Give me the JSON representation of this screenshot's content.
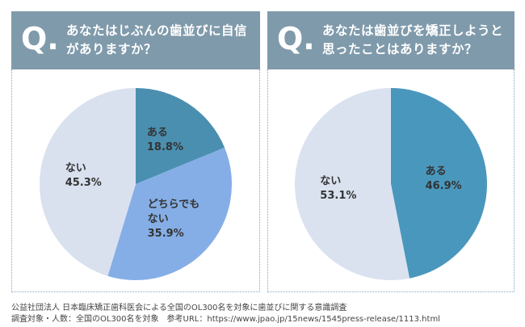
{
  "chart_data": [
    {
      "type": "pie",
      "title_prefix": "Q.",
      "title": "あなたはじぶんの歯並びに自信がありますか？",
      "categories": [
        "ある",
        "どちらでもない",
        "ない"
      ],
      "values": [
        18.8,
        35.9,
        45.3
      ],
      "value_labels": [
        "18.8%",
        "35.9%",
        "45.3%"
      ],
      "colors": [
        "#4a8fb0",
        "#85aee6",
        "#d9e1ee"
      ]
    },
    {
      "type": "pie",
      "title_prefix": "Q.",
      "title": "あなたは歯並びを矯正しようと思ったことはありますか？",
      "categories": [
        "ある",
        "ない"
      ],
      "values": [
        46.9,
        53.1
      ],
      "value_labels": [
        "46.9%",
        "53.1%"
      ],
      "colors": [
        "#4a97bd",
        "#dae2ef"
      ]
    }
  ],
  "footer": [
    "公益社団法人 日本臨床矯正歯科医会による全国のOL300名を対象に歯並びに関する意識調査",
    "調査対象・人数：全国のOL300名を対象　参考URL：https://www.jpao.jp/15news/1545press-release/1113.html"
  ]
}
